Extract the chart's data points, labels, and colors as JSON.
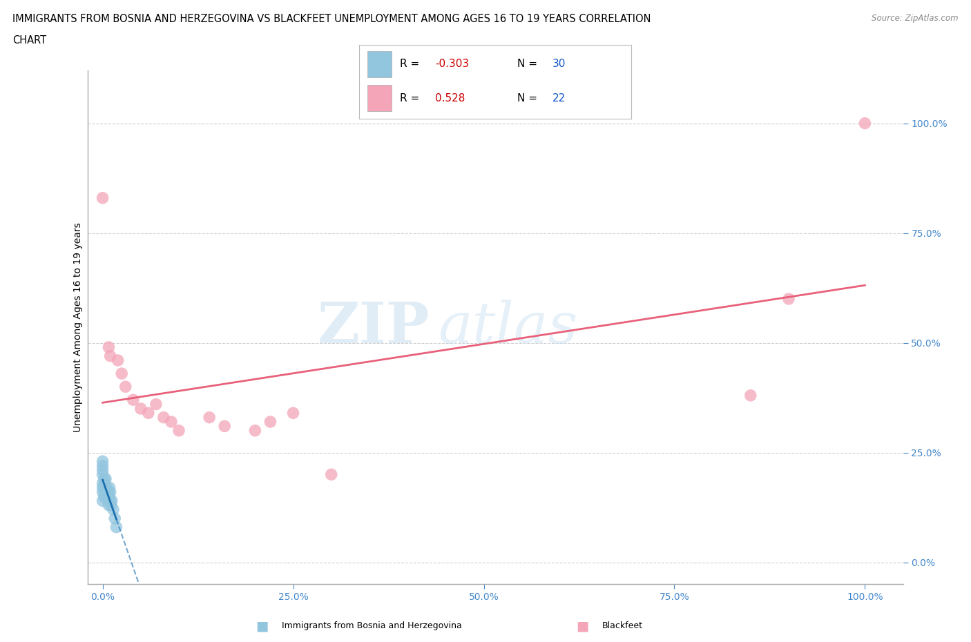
{
  "title_line1": "IMMIGRANTS FROM BOSNIA AND HERZEGOVINA VS BLACKFEET UNEMPLOYMENT AMONG AGES 16 TO 19 YEARS CORRELATION",
  "title_line2": "CHART",
  "source_text": "Source: ZipAtlas.com",
  "ylabel": "Unemployment Among Ages 16 to 19 years",
  "ytick_labels": [
    "0.0%",
    "25.0%",
    "50.0%",
    "75.0%",
    "100.0%"
  ],
  "yticks": [
    0.0,
    0.25,
    0.5,
    0.75,
    1.0
  ],
  "xtick_labels": [
    "0.0%",
    "25.0%",
    "50.0%",
    "75.0%",
    "100.0%"
  ],
  "xticks": [
    0.0,
    0.25,
    0.5,
    0.75,
    1.0
  ],
  "xlim": [
    -0.02,
    1.05
  ],
  "ylim": [
    -0.05,
    1.12
  ],
  "blue_color": "#92c5de",
  "pink_color": "#f4a5b8",
  "blue_line_color": "#1a6faf",
  "pink_line_color": "#e8607a",
  "watermark_zip": "ZIP",
  "watermark_atlas": "atlas",
  "legend_r1": "-0.303",
  "legend_n1": "30",
  "legend_r2": "0.528",
  "legend_n2": "22",
  "blue_x": [
    0.0,
    0.0,
    0.0,
    0.0,
    0.0,
    0.0,
    0.0,
    0.0,
    0.002,
    0.002,
    0.002,
    0.003,
    0.003,
    0.004,
    0.004,
    0.005,
    0.005,
    0.006,
    0.007,
    0.007,
    0.008,
    0.009,
    0.009,
    0.01,
    0.01,
    0.011,
    0.012,
    0.014,
    0.016,
    0.018
  ],
  "blue_y": [
    0.14,
    0.16,
    0.17,
    0.18,
    0.2,
    0.21,
    0.22,
    0.23,
    0.15,
    0.17,
    0.19,
    0.15,
    0.18,
    0.16,
    0.19,
    0.15,
    0.17,
    0.16,
    0.14,
    0.16,
    0.13,
    0.15,
    0.17,
    0.14,
    0.16,
    0.13,
    0.14,
    0.12,
    0.1,
    0.08
  ],
  "pink_x": [
    0.0,
    0.008,
    0.01,
    0.02,
    0.025,
    0.03,
    0.04,
    0.05,
    0.06,
    0.07,
    0.08,
    0.09,
    0.1,
    0.14,
    0.16,
    0.2,
    0.22,
    0.25,
    0.3,
    0.85,
    0.9,
    1.0
  ],
  "pink_y": [
    0.83,
    0.49,
    0.47,
    0.46,
    0.43,
    0.4,
    0.37,
    0.35,
    0.34,
    0.36,
    0.33,
    0.32,
    0.3,
    0.33,
    0.31,
    0.3,
    0.32,
    0.34,
    0.2,
    0.38,
    0.6,
    1.0
  ],
  "background_color": "#ffffff",
  "grid_color": "#bbbbbb",
  "tick_color": "#4488cc",
  "axis_color": "#aaaaaa"
}
